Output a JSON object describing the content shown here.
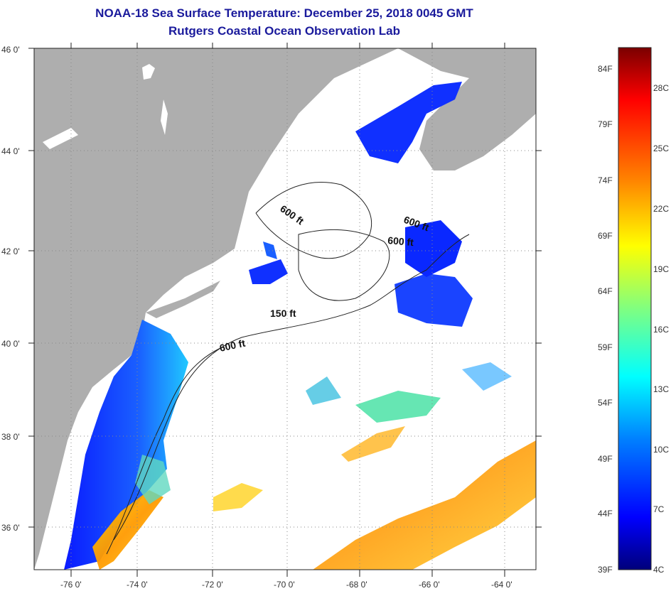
{
  "title": {
    "line1": "NOAA-18 Sea Surface Temperature:  December 25, 2018 0045 GMT",
    "line2": "Rutgers Coastal Ocean Observation Lab"
  },
  "axes": {
    "lon_labels": [
      "-76 0'",
      "-74 0'",
      "-72 0'",
      "-70 0'",
      "-68 0'",
      "-66 0'",
      "-64 0'"
    ],
    "lat_labels": [
      "46 0'",
      "44 0'",
      "42 0'",
      "40 0'",
      "38 0'",
      "36 0'"
    ]
  },
  "contour_labels": {
    "a": "600 ft",
    "b": "600 ft",
    "c": "600 ft",
    "d": "150 ft",
    "e": "600 ft"
  },
  "colorbar": {
    "fahrenheit": [
      "84F",
      "79F",
      "74F",
      "69F",
      "64F",
      "59F",
      "54F",
      "49F",
      "44F",
      "39F"
    ],
    "celsius": [
      "28C",
      "25C",
      "22C",
      "19C",
      "16C",
      "13C",
      "10C",
      "7C",
      "4C"
    ]
  },
  "colors": {
    "land": "#aeaeae",
    "ocean_no_data": "#ffffff",
    "cold": "#0a1aff",
    "title": "#1a1a9c"
  }
}
